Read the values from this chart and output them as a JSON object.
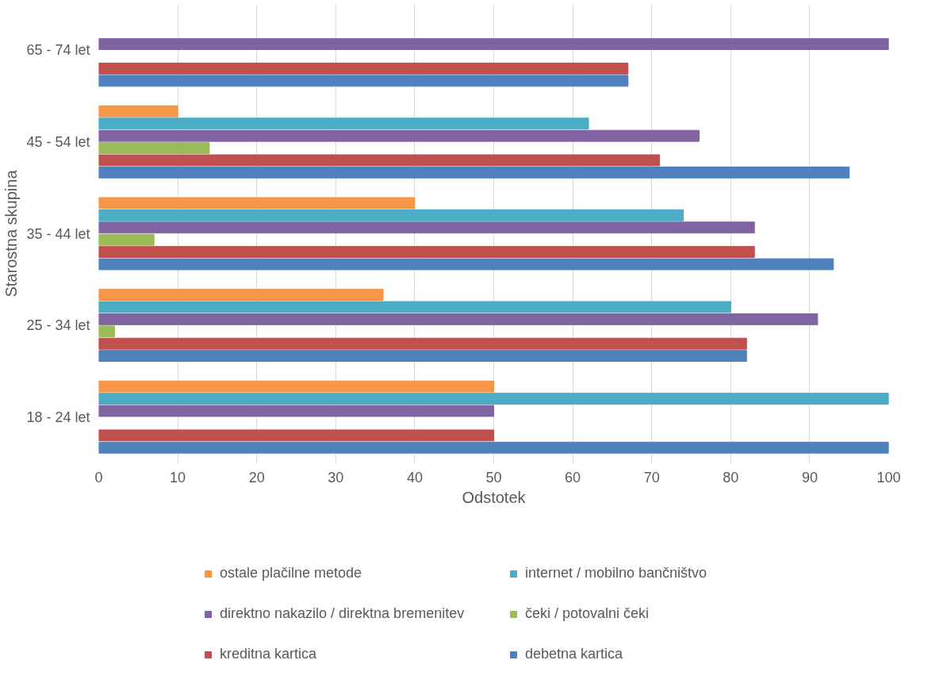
{
  "chart_data": {
    "type": "bar",
    "orientation": "horizontal",
    "xlabel": "Odstotek",
    "ylabel": "Starostna skupina",
    "categories": [
      "65 - 74 let",
      "45 - 54 let",
      "35 - 44 let",
      "25 - 34 let",
      "18 - 24 let"
    ],
    "series": [
      {
        "name": "ostale plačilne metode",
        "color": "#f79646",
        "values": [
          null,
          10,
          40,
          36,
          50
        ]
      },
      {
        "name": "internet / mobilno bančništvo",
        "color": "#4bacc6",
        "values": [
          null,
          62,
          74,
          80,
          100
        ]
      },
      {
        "name": "direktno nakazilo / direktna bremenitev",
        "color": "#8064a2",
        "values": [
          100,
          76,
          83,
          91,
          50
        ]
      },
      {
        "name": "čeki / potovalni čeki",
        "color": "#9bbb59",
        "values": [
          null,
          14,
          7,
          2,
          null
        ]
      },
      {
        "name": "kreditna kartica",
        "color": "#c0504d",
        "values": [
          67,
          71,
          83,
          82,
          50
        ]
      },
      {
        "name": "debetna kartica",
        "color": "#4f81bd",
        "values": [
          67,
          95,
          93,
          82,
          100
        ]
      }
    ],
    "xlim": [
      0,
      100
    ],
    "xticks": [
      0,
      10,
      20,
      30,
      40,
      50,
      60,
      70,
      80,
      90,
      100
    ],
    "grid": "x",
    "legend": "bottom"
  }
}
